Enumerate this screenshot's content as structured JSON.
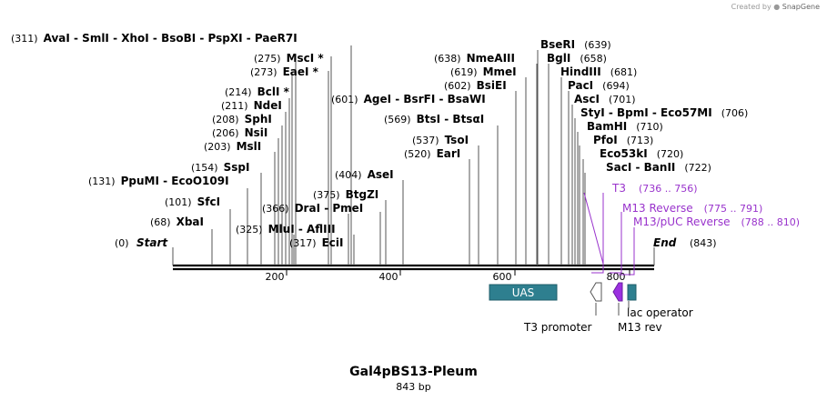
{
  "credit": {
    "prefix": "Created by",
    "brand": "SnapGene"
  },
  "map": {
    "title": "Gal4pBS13-Pleum",
    "length_label": "843 bp",
    "length": 843,
    "start_label": "Start",
    "start_pos": "(0)",
    "end_label": "End",
    "end_pos": "(843)",
    "ticks": [
      "200",
      "400",
      "600",
      "800"
    ]
  },
  "sites": [
    {
      "pos": 311,
      "pos_label": "(311)",
      "names": "AvaI  -  SmlI  -  XhoI  -  BsoBI  -  PspXI  -  PaeR7I"
    },
    {
      "pos": 275,
      "pos_label": "(275)",
      "names": "MscI *"
    },
    {
      "pos": 273,
      "pos_label": "(273)",
      "names": "EaeI *"
    },
    {
      "pos": 214,
      "pos_label": "(214)",
      "names": "BclI *"
    },
    {
      "pos": 211,
      "pos_label": "(211)",
      "names": "NdeI"
    },
    {
      "pos": 208,
      "pos_label": "(208)",
      "names": "SphI"
    },
    {
      "pos": 206,
      "pos_label": "(206)",
      "names": "NsiI"
    },
    {
      "pos": 203,
      "pos_label": "(203)",
      "names": "MslI"
    },
    {
      "pos": 154,
      "pos_label": "(154)",
      "names": "SspI"
    },
    {
      "pos": 131,
      "pos_label": "(131)",
      "names": "PpuMI  -  EcoO109I"
    },
    {
      "pos": 101,
      "pos_label": "(101)",
      "names": "SfcI"
    },
    {
      "pos": 68,
      "pos_label": "(68)",
      "names": "XbaI"
    },
    {
      "pos": 366,
      "pos_label": "(366)",
      "names": "DraI  -  PmeI"
    },
    {
      "pos": 325,
      "pos_label": "(325)",
      "names": "MluI  -  AflIII"
    },
    {
      "pos": 317,
      "pos_label": "(317)",
      "names": "EciI"
    },
    {
      "pos": 375,
      "pos_label": "(375)",
      "names": "BtgZI"
    },
    {
      "pos": 404,
      "pos_label": "(404)",
      "names": "AseI"
    },
    {
      "pos": 601,
      "pos_label": "(601)",
      "names": "AgeI  -  BsrFI  -  BsaWI"
    },
    {
      "pos": 638,
      "pos_label": "(638)",
      "names": "NmeAIII"
    },
    {
      "pos": 619,
      "pos_label": "(619)",
      "names": "MmeI"
    },
    {
      "pos": 602,
      "pos_label": "(602)",
      "names": "BsiEI"
    },
    {
      "pos": 569,
      "pos_label": "(569)",
      "names": "BtsI  -  BtsαI"
    },
    {
      "pos": 537,
      "pos_label": "(537)",
      "names": "TsoI"
    },
    {
      "pos": 520,
      "pos_label": "(520)",
      "names": "EarI"
    },
    {
      "pos": 639,
      "pos_label": "(639)",
      "names": "BseRI"
    },
    {
      "pos": 658,
      "pos_label": "(658)",
      "names": "BglI"
    },
    {
      "pos": 681,
      "pos_label": "(681)",
      "names": "HindIII"
    },
    {
      "pos": 694,
      "pos_label": "(694)",
      "names": "PacI"
    },
    {
      "pos": 701,
      "pos_label": "(701)",
      "names": "AscI"
    },
    {
      "pos": 706,
      "pos_label": "(706)",
      "names": "StyI  -  BpmI  -  Eco57MI"
    },
    {
      "pos": 710,
      "pos_label": "(710)",
      "names": "BamHI"
    },
    {
      "pos": 713,
      "pos_label": "(713)",
      "names": "PfoI"
    },
    {
      "pos": 720,
      "pos_label": "(720)",
      "names": "Eco53kI"
    },
    {
      "pos": 722,
      "pos_label": "(722)",
      "names": "SacI  -  BanII"
    }
  ],
  "primers": [
    {
      "name": "T3",
      "range": "(736 .. 756)"
    },
    {
      "name": "M13 Reverse",
      "range": "(775 .. 791)"
    },
    {
      "name": "M13/pUC Reverse",
      "range": "(788 .. 810)"
    }
  ],
  "features": [
    {
      "name": "UAS",
      "color": "#2e7f8f"
    },
    {
      "name": "T3 promoter",
      "color": "#ffffff"
    },
    {
      "name": "M13 rev",
      "color": "#9b30e0"
    },
    {
      "name": "lac operator",
      "color": "#2e7f8f"
    }
  ],
  "colors": {
    "primer": "#9933cc",
    "feature_teal": "#2e7f8f"
  }
}
